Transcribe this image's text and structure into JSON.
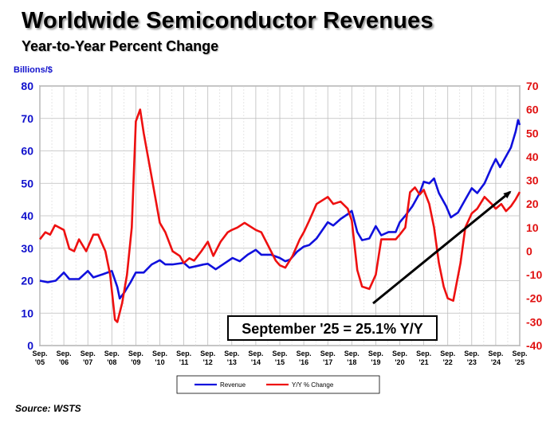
{
  "title": "Worldwide Semiconductor Revenues",
  "subtitle": "Year-to-Year Percent Change",
  "source": "Source: WSTS",
  "chart_data": {
    "type": "line",
    "title": "Worldwide Semiconductor Revenues",
    "subtitle": "Year-to-Year Percent Change",
    "ylabel": "Billions/$",
    "ylim": [
      0,
      80
    ],
    "y_ticks": [
      0,
      10,
      20,
      30,
      40,
      50,
      60,
      70,
      80
    ],
    "y2lim": [
      -40,
      70
    ],
    "y2_ticks": [
      -40,
      -30,
      -20,
      -10,
      0,
      10,
      20,
      30,
      40,
      50,
      60,
      70
    ],
    "x_ticks": [
      [
        "Sep.",
        "'05"
      ],
      [
        "Sep.",
        "'06"
      ],
      [
        "Sep.",
        "'07"
      ],
      [
        "Sep.",
        "'08"
      ],
      [
        "Sep.",
        "'09"
      ],
      [
        "Sep.",
        "'10"
      ],
      [
        "Sep.",
        "'11"
      ],
      [
        "Sep.",
        "'12"
      ],
      [
        "Sep.",
        "'13"
      ],
      [
        "Sep.",
        "'14"
      ],
      [
        "Sep.",
        "'15"
      ],
      [
        "Sep.",
        "'16"
      ],
      [
        "Sep.",
        "'17"
      ],
      [
        "Sep.",
        "'18"
      ],
      [
        "Sep.",
        "'19"
      ],
      [
        "Sep.",
        "'20"
      ],
      [
        "Sep.",
        "'21"
      ],
      [
        "Sep.",
        "'22"
      ],
      [
        "Sep.",
        "'23"
      ],
      [
        "Sep.",
        "'24"
      ],
      [
        "Sep.",
        "'25"
      ]
    ],
    "grid": true,
    "legend_position": "bottom",
    "annotation": "September '25 = 25.1% Y/Y",
    "colors": {
      "revenue": "#1010dd",
      "yoy": "#ee1010",
      "arrow": "#000000"
    },
    "series": [
      {
        "name": "Revenue",
        "axis": "left",
        "points": [
          [
            2005.67,
            20
          ],
          [
            2006.0,
            19.5
          ],
          [
            2006.33,
            20
          ],
          [
            2006.67,
            22.5
          ],
          [
            2006.9,
            20.5
          ],
          [
            2007.3,
            20.5
          ],
          [
            2007.67,
            23
          ],
          [
            2007.9,
            21
          ],
          [
            2008.3,
            22
          ],
          [
            2008.67,
            23
          ],
          [
            2008.9,
            18
          ],
          [
            2009.0,
            14.5
          ],
          [
            2009.2,
            16.5
          ],
          [
            2009.45,
            19.5
          ],
          [
            2009.67,
            22.5
          ],
          [
            2010.0,
            22.5
          ],
          [
            2010.33,
            25
          ],
          [
            2010.67,
            26.3
          ],
          [
            2010.9,
            25
          ],
          [
            2011.2,
            25
          ],
          [
            2011.67,
            25.5
          ],
          [
            2011.9,
            24
          ],
          [
            2012.2,
            24.5
          ],
          [
            2012.5,
            25
          ],
          [
            2012.67,
            25.2
          ],
          [
            2013.0,
            23.5
          ],
          [
            2013.4,
            25.5
          ],
          [
            2013.7,
            27
          ],
          [
            2014.0,
            26
          ],
          [
            2014.33,
            28
          ],
          [
            2014.67,
            29.5
          ],
          [
            2014.9,
            28
          ],
          [
            2015.3,
            28
          ],
          [
            2015.67,
            27
          ],
          [
            2015.9,
            26
          ],
          [
            2016.1,
            26.5
          ],
          [
            2016.4,
            29
          ],
          [
            2016.67,
            30.5
          ],
          [
            2016.9,
            31
          ],
          [
            2017.2,
            33
          ],
          [
            2017.67,
            38
          ],
          [
            2017.9,
            37
          ],
          [
            2018.2,
            39
          ],
          [
            2018.5,
            40.5
          ],
          [
            2018.67,
            41.5
          ],
          [
            2018.9,
            35
          ],
          [
            2019.1,
            32.5
          ],
          [
            2019.4,
            33
          ],
          [
            2019.67,
            36.8
          ],
          [
            2019.9,
            34
          ],
          [
            2020.2,
            35
          ],
          [
            2020.5,
            35
          ],
          [
            2020.67,
            38
          ],
          [
            2020.9,
            40
          ],
          [
            2021.2,
            43
          ],
          [
            2021.5,
            47
          ],
          [
            2021.67,
            50.5
          ],
          [
            2021.9,
            50
          ],
          [
            2022.1,
            51.5
          ],
          [
            2022.3,
            47
          ],
          [
            2022.6,
            43
          ],
          [
            2022.8,
            39.5
          ],
          [
            2023.1,
            41
          ],
          [
            2023.4,
            45
          ],
          [
            2023.67,
            48.5
          ],
          [
            2023.9,
            47
          ],
          [
            2024.2,
            50
          ],
          [
            2024.5,
            55
          ],
          [
            2024.67,
            57.5
          ],
          [
            2024.85,
            55
          ],
          [
            2025.0,
            57
          ],
          [
            2025.3,
            61
          ],
          [
            2025.5,
            66
          ],
          [
            2025.6,
            69.5
          ],
          [
            2025.67,
            68
          ]
        ]
      },
      {
        "name": "Y/Y % Change",
        "axis": "right",
        "points": [
          [
            2005.67,
            5
          ],
          [
            2005.9,
            8
          ],
          [
            2006.1,
            7
          ],
          [
            2006.3,
            11
          ],
          [
            2006.67,
            9
          ],
          [
            2006.9,
            1
          ],
          [
            2007.1,
            0
          ],
          [
            2007.3,
            5
          ],
          [
            2007.6,
            0
          ],
          [
            2007.9,
            7
          ],
          [
            2008.1,
            7
          ],
          [
            2008.4,
            0
          ],
          [
            2008.6,
            -10
          ],
          [
            2008.8,
            -29
          ],
          [
            2008.9,
            -30
          ],
          [
            2009.1,
            -22
          ],
          [
            2009.3,
            -10
          ],
          [
            2009.5,
            10
          ],
          [
            2009.67,
            55
          ],
          [
            2009.85,
            60
          ],
          [
            2010.0,
            50
          ],
          [
            2010.3,
            33
          ],
          [
            2010.67,
            12
          ],
          [
            2010.9,
            8
          ],
          [
            2011.2,
            0
          ],
          [
            2011.5,
            -2
          ],
          [
            2011.67,
            -5
          ],
          [
            2011.9,
            -3
          ],
          [
            2012.1,
            -4
          ],
          [
            2012.4,
            0
          ],
          [
            2012.67,
            4
          ],
          [
            2012.9,
            -2
          ],
          [
            2013.2,
            4
          ],
          [
            2013.5,
            8
          ],
          [
            2013.67,
            9
          ],
          [
            2013.9,
            10
          ],
          [
            2014.2,
            12
          ],
          [
            2014.67,
            9
          ],
          [
            2014.9,
            8
          ],
          [
            2015.2,
            2
          ],
          [
            2015.5,
            -4
          ],
          [
            2015.67,
            -6
          ],
          [
            2015.9,
            -7
          ],
          [
            2016.2,
            -2
          ],
          [
            2016.5,
            5
          ],
          [
            2016.67,
            8
          ],
          [
            2016.9,
            13
          ],
          [
            2017.2,
            20
          ],
          [
            2017.67,
            23
          ],
          [
            2017.9,
            20
          ],
          [
            2018.2,
            21
          ],
          [
            2018.5,
            18
          ],
          [
            2018.67,
            13
          ],
          [
            2018.9,
            -8
          ],
          [
            2019.1,
            -15
          ],
          [
            2019.4,
            -16
          ],
          [
            2019.67,
            -10
          ],
          [
            2019.9,
            5
          ],
          [
            2020.2,
            5
          ],
          [
            2020.5,
            5
          ],
          [
            2020.67,
            7
          ],
          [
            2020.9,
            10
          ],
          [
            2021.1,
            25
          ],
          [
            2021.3,
            27
          ],
          [
            2021.5,
            24
          ],
          [
            2021.67,
            26
          ],
          [
            2021.9,
            20
          ],
          [
            2022.1,
            10
          ],
          [
            2022.3,
            -5
          ],
          [
            2022.5,
            -15
          ],
          [
            2022.67,
            -20
          ],
          [
            2022.9,
            -21
          ],
          [
            2023.2,
            -5
          ],
          [
            2023.4,
            10
          ],
          [
            2023.67,
            16
          ],
          [
            2023.9,
            18
          ],
          [
            2024.2,
            23
          ],
          [
            2024.5,
            20
          ],
          [
            2024.67,
            18
          ],
          [
            2024.9,
            20
          ],
          [
            2025.1,
            17
          ],
          [
            2025.3,
            19
          ],
          [
            2025.5,
            22
          ],
          [
            2025.67,
            25.1
          ]
        ]
      }
    ]
  }
}
